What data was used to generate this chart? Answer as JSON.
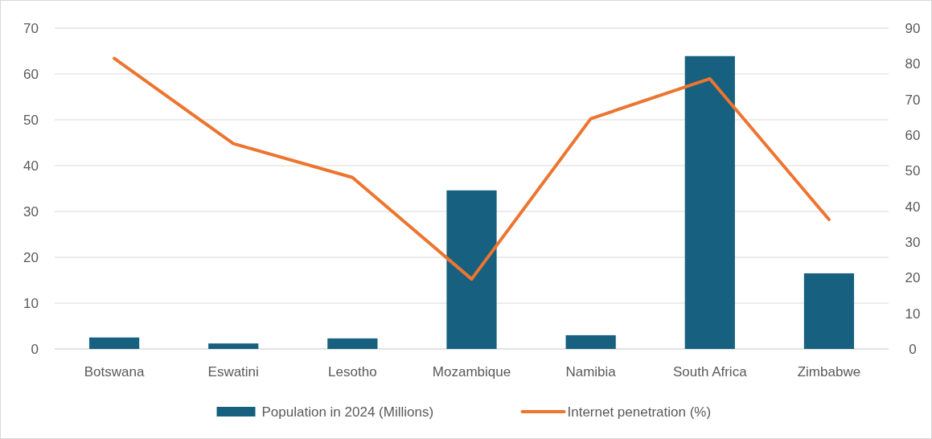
{
  "chart_data": {
    "type": "bar",
    "categories": [
      "Botswana",
      "Eswatini",
      "Lesotho",
      "Mozambique",
      "Namibia",
      "South Africa",
      "Zimbabwe"
    ],
    "series": [
      {
        "name": "Population in 2024 (Millions)",
        "color": "#17607f",
        "values": [
          2.5,
          1.2,
          2.3,
          34.6,
          3.0,
          63.9,
          16.5
        ]
      },
      {
        "name": "Internet penetration (%)",
        "type": "line",
        "axis": "y2",
        "color": "#ec7530",
        "values": [
          81.5,
          57.6,
          48.1,
          19.6,
          64.6,
          75.8,
          36.3
        ]
      }
    ],
    "ylim": [
      0,
      70
    ],
    "yticks": [
      0,
      10,
      20,
      30,
      40,
      50,
      60,
      70
    ],
    "y2lim": [
      0,
      90
    ],
    "y2ticks": [
      0,
      10,
      20,
      30,
      40,
      50,
      60,
      70,
      80,
      90
    ],
    "grid": "y",
    "legend": "bottom",
    "marker": "none"
  }
}
